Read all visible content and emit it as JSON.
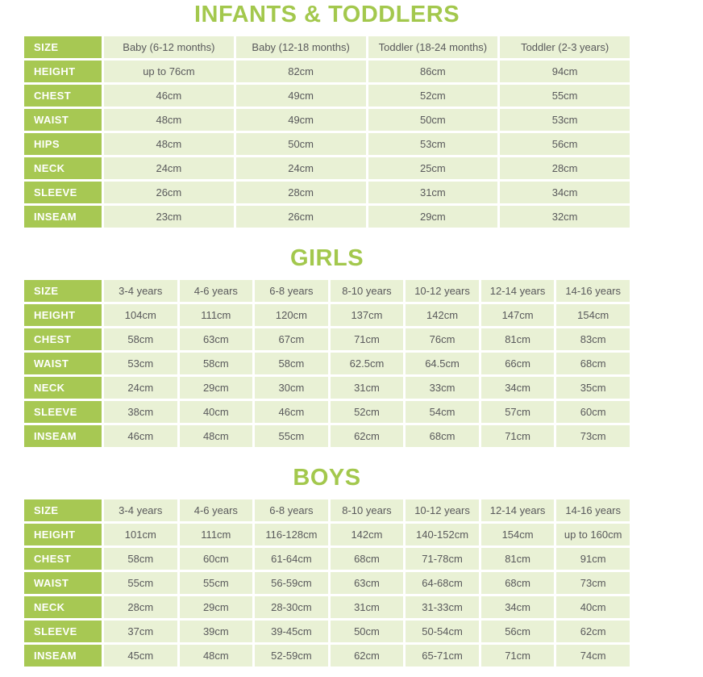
{
  "colors": {
    "title_green": "#a3c84d",
    "label_cell_green": "#a7c853",
    "data_cell_green": "#e9f1d5",
    "data_text_gray": "#59595b",
    "label_text_white": "#ffffff"
  },
  "sections": [
    {
      "title": "INFANTS & TODDLERS",
      "size_label": "SIZE",
      "columns": [
        "Baby (6-12 months)",
        "Baby (12-18 months)",
        "Toddler (18-24 months)",
        "Toddler (2-3 years)"
      ],
      "rows": [
        {
          "label": "HEIGHT",
          "values": [
            "up to 76cm",
            "82cm",
            "86cm",
            "94cm"
          ]
        },
        {
          "label": "CHEST",
          "values": [
            "46cm",
            "49cm",
            "52cm",
            "55cm"
          ]
        },
        {
          "label": "WAIST",
          "values": [
            "48cm",
            "49cm",
            "50cm",
            "53cm"
          ]
        },
        {
          "label": "HIPS",
          "values": [
            "48cm",
            "50cm",
            "53cm",
            "56cm"
          ]
        },
        {
          "label": "NECK",
          "values": [
            "24cm",
            "24cm",
            "25cm",
            "28cm"
          ]
        },
        {
          "label": "SLEEVE",
          "values": [
            "26cm",
            "28cm",
            "31cm",
            "34cm"
          ]
        },
        {
          "label": "INSEAM",
          "values": [
            "23cm",
            "26cm",
            "29cm",
            "32cm"
          ]
        }
      ]
    },
    {
      "title": "GIRLS",
      "size_label": "SIZE",
      "columns": [
        "3-4 years",
        "4-6 years",
        "6-8 years",
        "8-10 years",
        "10-12 years",
        "12-14 years",
        "14-16 years"
      ],
      "rows": [
        {
          "label": "HEIGHT",
          "values": [
            "104cm",
            "111cm",
            "120cm",
            "137cm",
            "142cm",
            "147cm",
            "154cm"
          ]
        },
        {
          "label": "CHEST",
          "values": [
            "58cm",
            "63cm",
            "67cm",
            "71cm",
            "76cm",
            "81cm",
            "83cm"
          ]
        },
        {
          "label": "WAIST",
          "values": [
            "53cm",
            "58cm",
            "58cm",
            "62.5cm",
            "64.5cm",
            "66cm",
            "68cm"
          ]
        },
        {
          "label": "NECK",
          "values": [
            "24cm",
            "29cm",
            "30cm",
            "31cm",
            "33cm",
            "34cm",
            "35cm"
          ]
        },
        {
          "label": "SLEEVE",
          "values": [
            "38cm",
            "40cm",
            "46cm",
            "52cm",
            "54cm",
            "57cm",
            "60cm"
          ]
        },
        {
          "label": "INSEAM",
          "values": [
            "46cm",
            "48cm",
            "55cm",
            "62cm",
            "68cm",
            "71cm",
            "73cm"
          ]
        }
      ]
    },
    {
      "title": "BOYS",
      "size_label": "SIZE",
      "columns": [
        "3-4 years",
        "4-6 years",
        "6-8 years",
        "8-10 years",
        "10-12 years",
        "12-14 years",
        "14-16 years"
      ],
      "rows": [
        {
          "label": "HEIGHT",
          "values": [
            "101cm",
            "111cm",
            "116-128cm",
            "142cm",
            "140-152cm",
            "154cm",
            "up to 160cm"
          ]
        },
        {
          "label": "CHEST",
          "values": [
            "58cm",
            "60cm",
            "61-64cm",
            "68cm",
            "71-78cm",
            "81cm",
            "91cm"
          ]
        },
        {
          "label": "WAIST",
          "values": [
            "55cm",
            "55cm",
            "56-59cm",
            "63cm",
            "64-68cm",
            "68cm",
            "73cm"
          ]
        },
        {
          "label": "NECK",
          "values": [
            "28cm",
            "29cm",
            "28-30cm",
            "31cm",
            "31-33cm",
            "34cm",
            "40cm"
          ]
        },
        {
          "label": "SLEEVE",
          "values": [
            "37cm",
            "39cm",
            "39-45cm",
            "50cm",
            "50-54cm",
            "56cm",
            "62cm"
          ]
        },
        {
          "label": "INSEAM",
          "values": [
            "45cm",
            "48cm",
            "52-59cm",
            "62cm",
            "65-71cm",
            "71cm",
            "74cm"
          ]
        }
      ]
    }
  ]
}
